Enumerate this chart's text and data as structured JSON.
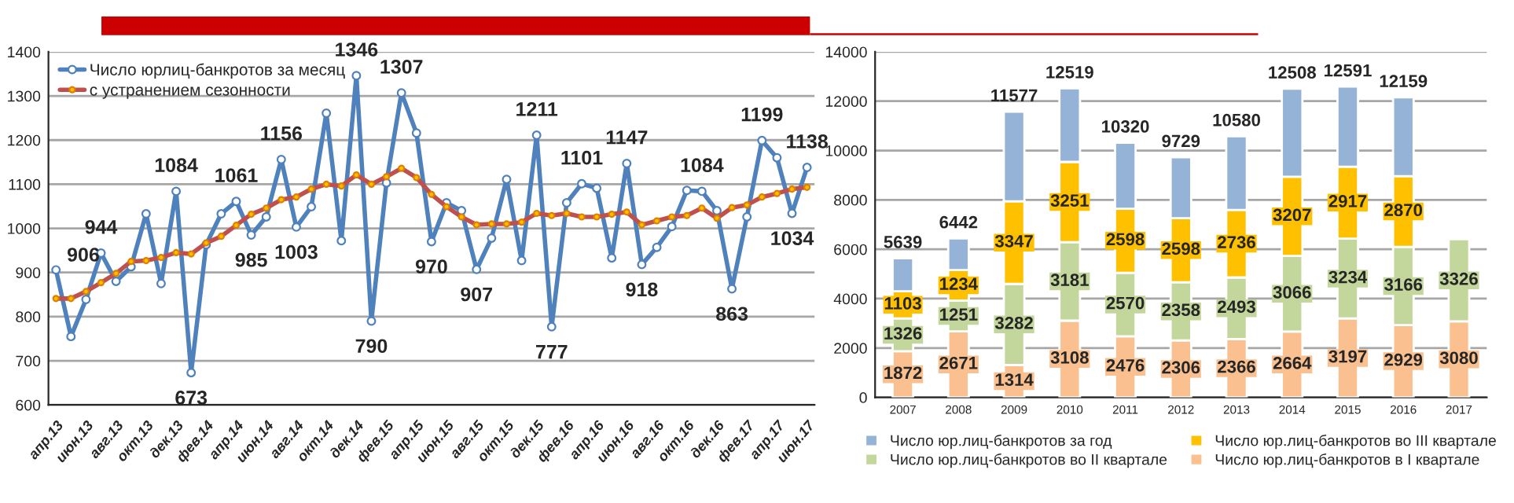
{
  "chart_data": [
    {
      "type": "line",
      "categories": [
        "апр.13",
        null,
        "июн.13",
        null,
        "авг.13",
        null,
        "окт.13",
        null,
        "дек.13",
        null,
        "фев.14",
        null,
        "апр.14",
        null,
        "июн.14",
        null,
        "авг.14",
        null,
        "окт.14",
        null,
        "дек.14",
        null,
        "фев.15",
        null,
        "апр.15",
        null,
        "июн.15",
        null,
        "авг.15",
        null,
        "окт.15",
        null,
        "дек.15",
        null,
        "фев.16",
        null,
        "апр.16",
        null,
        "июн.16",
        null,
        "авг.16",
        null,
        "окт.16",
        null,
        "дек.16",
        null,
        "фев.17",
        null,
        "апр.17",
        null,
        "июн.17"
      ],
      "series": [
        {
          "name": "Число юрлиц-банкротов за месяц",
          "color": "#4f81bd",
          "values": [
            906,
            755,
            839,
            944,
            880,
            913,
            1033,
            875,
            1084,
            673,
            963,
            1033,
            1061,
            985,
            1026,
            1156,
            1003,
            1049,
            1261,
            972,
            1346,
            790,
            1103,
            1307,
            1216,
            970,
            1058,
            1040,
            907,
            978,
            1111,
            927,
            1211,
            777,
            1058,
            1101,
            1091,
            933,
            1147,
            918,
            957,
            1004,
            1086,
            1084,
            1040,
            863,
            1026,
            1199,
            1160,
            1034,
            1138
          ],
          "value_labels": [
            "906",
            null,
            null,
            "944",
            null,
            null,
            null,
            null,
            "1084",
            "673",
            null,
            null,
            "1061",
            "985",
            null,
            "1156",
            "1003",
            null,
            null,
            null,
            "1346",
            "790",
            null,
            "1307",
            null,
            "970",
            null,
            null,
            "907",
            null,
            null,
            null,
            "1211",
            "777",
            null,
            "1101",
            null,
            null,
            "1147",
            "918",
            null,
            null,
            null,
            "1084",
            null,
            "863",
            null,
            "1199",
            null,
            "1034",
            "1138"
          ]
        },
        {
          "name": "с устранением сезонности",
          "color": "#c0504d",
          "values": [
            841,
            841,
            857,
            877,
            898,
            925,
            927,
            934,
            945,
            942,
            967,
            982,
            1007,
            1032,
            1046,
            1065,
            1071,
            1089,
            1100,
            1096,
            1121,
            1100,
            1117,
            1136,
            1115,
            1077,
            1049,
            1026,
            1008,
            1010,
            1010,
            1014,
            1034,
            1029,
            1034,
            1026,
            1026,
            1032,
            1037,
            1008,
            1017,
            1026,
            1029,
            1046,
            1023,
            1047,
            1053,
            1071,
            1079,
            1089,
            1093
          ]
        }
      ],
      "ylim": [
        600,
        1400
      ],
      "yticks": [
        600,
        700,
        800,
        900,
        1000,
        1100,
        1200,
        1300,
        1400
      ],
      "grid": "y",
      "legend": "top left",
      "marker": "circle"
    },
    {
      "type": "bar",
      "stacked": true,
      "categories": [
        "2007",
        "2008",
        "2009",
        "2010",
        "2011",
        "2012",
        "2013",
        "2014",
        "2015",
        "2016",
        "2017"
      ],
      "series": [
        {
          "name": "Число юр.лиц-банкротов в I квартале",
          "color": "#fac090",
          "values": [
            1872,
            2671,
            1314,
            3108,
            2476,
            2306,
            2366,
            2664,
            3197,
            2929,
            3080
          ],
          "value_labels": [
            "1872",
            "2671",
            "1314",
            "3108",
            "2476",
            "2306",
            "2366",
            "2664",
            "3197",
            "2929",
            "3080"
          ]
        },
        {
          "name": "Число юр.лиц-банкротов во II квартале",
          "color": "#c3d69b",
          "values": [
            1326,
            1251,
            3282,
            3181,
            2570,
            2358,
            2493,
            3066,
            3234,
            3166,
            3326
          ],
          "value_labels": [
            "1326",
            "1251",
            "3282",
            "3181",
            "2570",
            "2358",
            "2493",
            "3066",
            "3234",
            "3166",
            "3326"
          ]
        },
        {
          "name": "Число юр.лиц-банкротов во III квартале",
          "color": "#ffc000",
          "values": [
            1103,
            1234,
            3347,
            3251,
            2598,
            2598,
            2736,
            3207,
            2917,
            2870,
            null
          ],
          "value_labels": [
            "1103",
            "1234",
            "3347",
            "3251",
            "2598",
            "2598",
            "2736",
            "3207",
            "2917",
            "2870",
            null
          ]
        },
        {
          "name": "Число юр.лиц-банкротов за год",
          "color": "#95b3d7",
          "values": [
            1338,
            1286,
            3634,
            2979,
            2676,
            2467,
            2985,
            3571,
            3243,
            3194,
            null
          ]
        }
      ],
      "totals": [
        "5639",
        "6442",
        "11577",
        "12519",
        "10320",
        "9729",
        "10580",
        "12508",
        "12591",
        "12159",
        null
      ],
      "ylim": [
        0,
        14000
      ],
      "yticks": [
        0,
        2000,
        4000,
        6000,
        8000,
        10000,
        12000,
        14000
      ],
      "grid": "y",
      "legend": "bottom"
    }
  ]
}
